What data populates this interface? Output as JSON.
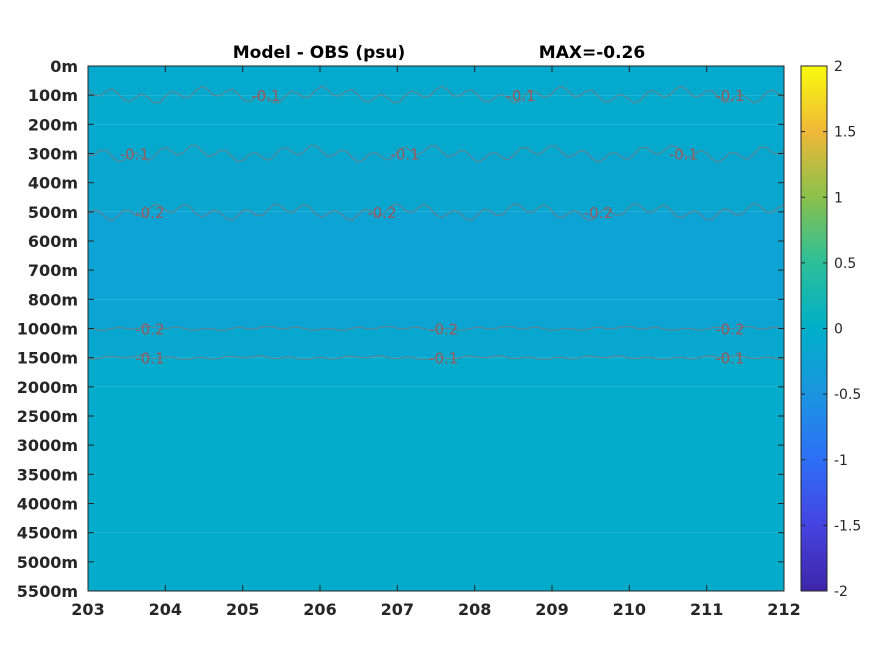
{
  "chart_data": {
    "type": "heatmap",
    "title": "Model - OBS (psu)",
    "max_label": "MAX=-0.26",
    "x_ticks": [
      "203",
      "204",
      "205",
      "206",
      "207",
      "208",
      "209",
      "210",
      "211",
      "212"
    ],
    "xlim": [
      203,
      212
    ],
    "y_ticks": [
      "0m",
      "100m",
      "200m",
      "300m",
      "400m",
      "500m",
      "600m",
      "700m",
      "800m",
      "1000m",
      "1500m",
      "2000m",
      "2500m",
      "3000m",
      "3500m",
      "4000m",
      "4500m",
      "5000m",
      "5500m"
    ],
    "colorbar": {
      "range": [
        -2,
        2
      ],
      "ticks": [
        "2",
        "1.5",
        "1",
        "0.5",
        "0",
        "-0.5",
        "-1",
        "-1.5",
        "-2"
      ]
    },
    "depth_bands": [
      {
        "from": "0m",
        "to": "100m",
        "value": -0.12
      },
      {
        "from": "100m",
        "to": "200m",
        "value": -0.1
      },
      {
        "from": "200m",
        "to": "300m",
        "value": -0.12
      },
      {
        "from": "300m",
        "to": "500m",
        "value": -0.16
      },
      {
        "from": "500m",
        "to": "800m",
        "value": -0.24
      },
      {
        "from": "800m",
        "to": "1000m",
        "value": -0.22
      },
      {
        "from": "1000m",
        "to": "1500m",
        "value": -0.15
      },
      {
        "from": "1500m",
        "to": "2000m",
        "value": -0.08
      },
      {
        "from": "2000m",
        "to": "4500m",
        "value": -0.05
      },
      {
        "from": "4500m",
        "to": "5500m",
        "value": -0.07
      }
    ],
    "contours": [
      {
        "level": "-0.1",
        "depth": "100m",
        "label_x": [
          205.3,
          208.6,
          211.3
        ]
      },
      {
        "level": "-0.1",
        "depth": "300m",
        "label_x": [
          203.6,
          207.1,
          210.7
        ]
      },
      {
        "level": "-0.2",
        "depth": "500m",
        "label_x": [
          203.8,
          206.8,
          209.6
        ]
      },
      {
        "level": "-0.2",
        "depth": "1000m",
        "label_x": [
          203.8,
          207.6,
          211.3
        ]
      },
      {
        "level": "-0.1",
        "depth": "1500m",
        "label_x": [
          203.8,
          207.6,
          211.3
        ]
      }
    ],
    "grid": false
  }
}
